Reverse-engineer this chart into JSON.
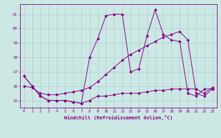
{
  "background_color": "#cce8e4",
  "grid_color": "#aacccc",
  "line_color": "#880088",
  "xlabel": "Windchill (Refroidissement éolien,°C)",
  "xlim": [
    -0.5,
    23.5
  ],
  "ylim": [
    14.5,
    21.7
  ],
  "xticks": [
    0,
    1,
    2,
    3,
    4,
    5,
    6,
    7,
    8,
    9,
    10,
    11,
    12,
    13,
    14,
    15,
    16,
    17,
    18,
    19,
    20,
    21,
    22,
    23
  ],
  "yticks": [
    15,
    16,
    17,
    18,
    19,
    20,
    21
  ],
  "series": [
    {
      "x": [
        0,
        1,
        2,
        3,
        4,
        5,
        6,
        7,
        8,
        9,
        10,
        11,
        12,
        13,
        14,
        15,
        16,
        17,
        18,
        19,
        20,
        21,
        22,
        23
      ],
      "y": [
        16.7,
        16.0,
        15.3,
        15.0,
        15.0,
        15.0,
        14.9,
        14.8,
        15.0,
        15.3,
        15.3,
        15.4,
        15.5,
        15.5,
        15.5,
        15.6,
        15.7,
        15.7,
        15.8,
        15.8,
        15.8,
        15.8,
        15.5,
        15.9
      ]
    },
    {
      "x": [
        0,
        1,
        2,
        3,
        4,
        5,
        6,
        7,
        8,
        9,
        10,
        11,
        12,
        13,
        14,
        15,
        16,
        17,
        18,
        19,
        20,
        21,
        22,
        23
      ],
      "y": [
        16.7,
        16.0,
        15.3,
        15.0,
        15.0,
        15.0,
        14.9,
        14.8,
        18.0,
        19.3,
        20.9,
        21.0,
        21.0,
        17.0,
        17.2,
        19.5,
        21.3,
        19.6,
        19.2,
        19.1,
        15.5,
        15.3,
        15.8,
        15.8
      ]
    },
    {
      "x": [
        0,
        1,
        2,
        3,
        4,
        5,
        6,
        7,
        8,
        9,
        10,
        11,
        12,
        13,
        14,
        15,
        16,
        17,
        18,
        19,
        20,
        21,
        22,
        23
      ],
      "y": [
        16.0,
        15.9,
        15.5,
        15.4,
        15.4,
        15.5,
        15.6,
        15.7,
        15.9,
        16.3,
        16.8,
        17.3,
        17.8,
        18.2,
        18.5,
        18.8,
        19.1,
        19.4,
        19.6,
        19.8,
        19.2,
        15.5,
        15.3,
        15.8
      ]
    }
  ]
}
